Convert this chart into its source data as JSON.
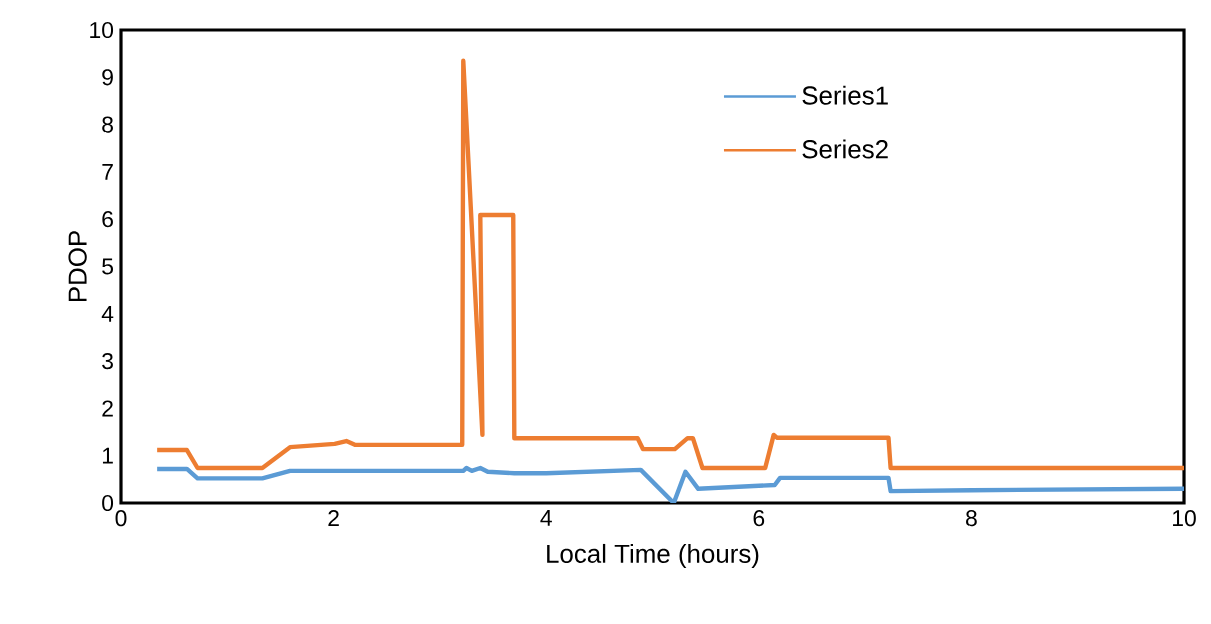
{
  "chart_data": {
    "type": "line",
    "xlabel": "Local Time (hours)",
    "ylabel": "PDOP",
    "xlim": [
      0,
      10
    ],
    "ylim": [
      0,
      10
    ],
    "xticks": [
      0,
      2,
      4,
      6,
      8,
      10
    ],
    "yticks": [
      0,
      1,
      2,
      3,
      4,
      5,
      6,
      7,
      8,
      9,
      10
    ],
    "legend": "top right",
    "marker": "none",
    "line_style": "solid",
    "series": [
      {
        "name": "Series1",
        "color": "#5b9bd5",
        "x": [
          0.34,
          0.62,
          0.72,
          1.33,
          1.59,
          3.22,
          3.25,
          3.3,
          3.38,
          3.45,
          3.7,
          4.0,
          4.89,
          5.2,
          5.31,
          5.43,
          6.15,
          6.2,
          7.22,
          7.24,
          8.0,
          10
        ],
        "values": [
          0.72,
          0.72,
          0.52,
          0.52,
          0.68,
          0.68,
          0.74,
          0.68,
          0.74,
          0.66,
          0.63,
          0.63,
          0.7,
          0,
          0.66,
          0.3,
          0.38,
          0.53,
          0.53,
          0.25,
          0.27,
          0.3
        ]
      },
      {
        "name": "Series2",
        "color": "#ed7d31",
        "x": [
          0.34,
          0.62,
          0.72,
          1.33,
          1.59,
          2.01,
          2.12,
          2.2,
          3.21,
          3.22,
          3.4,
          3.38,
          3.69,
          3.7,
          4.86,
          4.91,
          5.21,
          5.33,
          5.38,
          5.47,
          6.06,
          6.14,
          6.17,
          7.22,
          7.24,
          10
        ],
        "values": [
          1.12,
          1.12,
          0.74,
          0.74,
          1.18,
          1.25,
          1.31,
          1.23,
          1.23,
          9.35,
          1.44,
          6.09,
          6.09,
          1.37,
          1.37,
          1.14,
          1.14,
          1.37,
          1.37,
          0.74,
          0.74,
          1.44,
          1.38,
          1.38,
          0.74,
          0.74
        ]
      }
    ]
  }
}
